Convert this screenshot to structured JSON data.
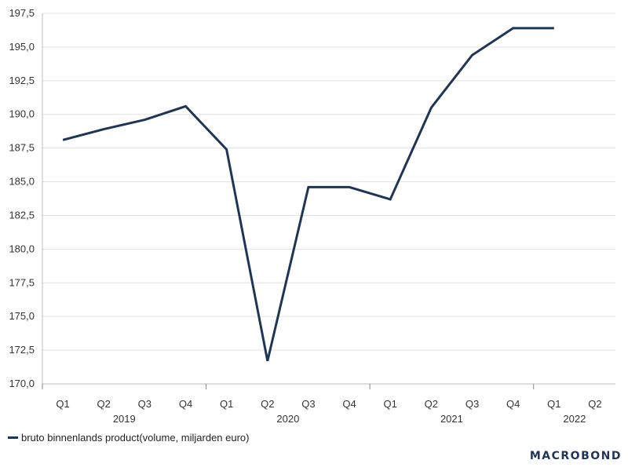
{
  "chart_data": {
    "type": "line",
    "y_tick_labels": [
      "170,0",
      "172,5",
      "175,0",
      "177,5",
      "180,0",
      "182,5",
      "185,0",
      "187,5",
      "190,0",
      "192,5",
      "195,0",
      "197,5"
    ],
    "y_ticks": [
      170.0,
      172.5,
      175.0,
      177.5,
      180.0,
      182.5,
      185.0,
      187.5,
      190.0,
      192.5,
      195.0,
      197.5
    ],
    "ylim": [
      170.0,
      197.5
    ],
    "quarters": [
      "Q1",
      "Q2",
      "Q3",
      "Q4",
      "Q1",
      "Q2",
      "Q3",
      "Q4",
      "Q1",
      "Q2",
      "Q3",
      "Q4",
      "Q1",
      "Q2"
    ],
    "years": [
      {
        "label": "2019",
        "quarter_span": [
          0,
          3
        ]
      },
      {
        "label": "2020",
        "quarter_span": [
          4,
          7
        ]
      },
      {
        "label": "2021",
        "quarter_span": [
          8,
          11
        ]
      },
      {
        "label": "2022",
        "quarter_span": [
          12,
          13
        ]
      }
    ],
    "grid": true,
    "legend_position": "bottom-left",
    "series": [
      {
        "name": "bruto binnenlands product(volume, miljarden euro)",
        "color": "#1f3557",
        "x": [
          "2019 Q1",
          "2019 Q2",
          "2019 Q3",
          "2019 Q4",
          "2020 Q1",
          "2020 Q2",
          "2020 Q3",
          "2020 Q4",
          "2021 Q1",
          "2021 Q2",
          "2021 Q3",
          "2021 Q4",
          "2022 Q1"
        ],
        "values": [
          188.1,
          188.9,
          189.6,
          190.6,
          187.4,
          171.7,
          184.6,
          184.6,
          183.7,
          190.5,
          194.4,
          196.4,
          196.4
        ]
      }
    ]
  },
  "legend": {
    "label": "bruto binnenlands product(volume, miljarden euro)",
    "color": "#1f3557"
  },
  "branding": {
    "label": "MACROBOND"
  }
}
